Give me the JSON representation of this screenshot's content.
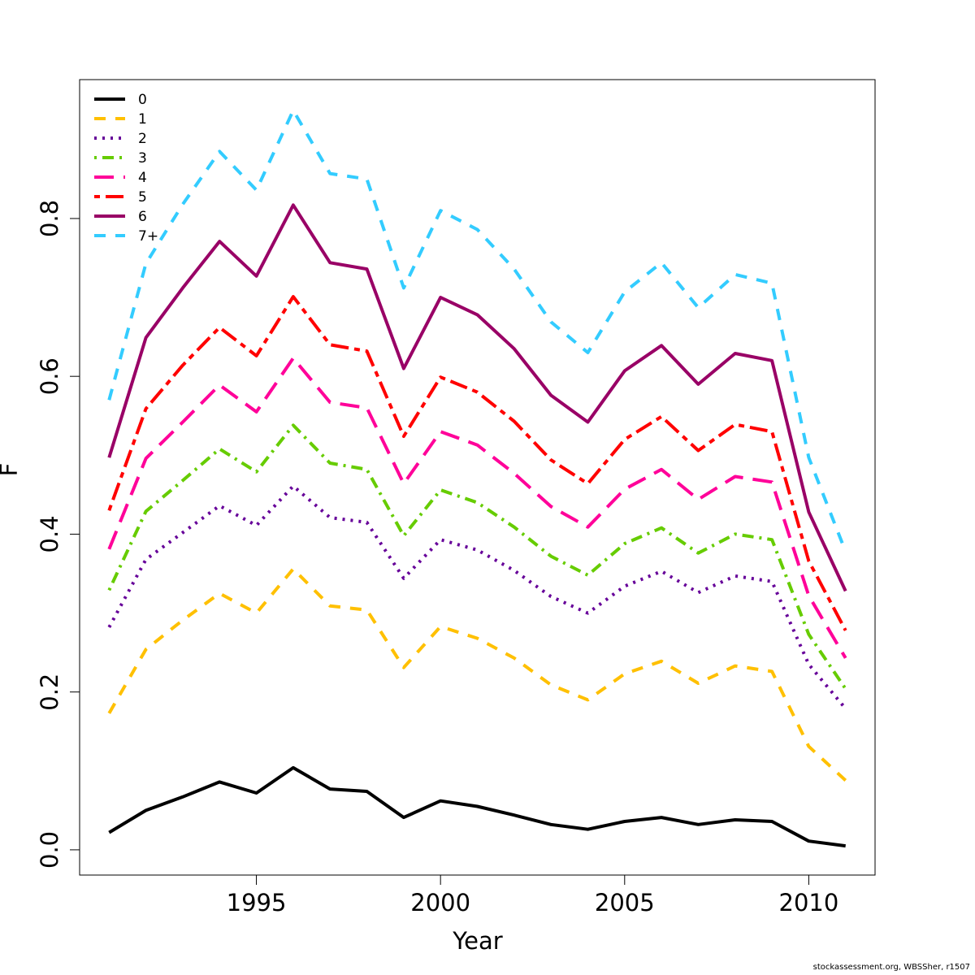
{
  "chart_data": {
    "type": "line",
    "xlabel": "Year",
    "ylabel": "F",
    "xlim": [
      1990.2,
      2011.8
    ],
    "ylim": [
      -0.032,
      0.976
    ],
    "x_ticks": [
      1995,
      2000,
      2005,
      2010
    ],
    "y_ticks": [
      0.0,
      0.2,
      0.4,
      0.6,
      0.8
    ],
    "y_tick_labels": [
      "0.0",
      "0.2",
      "0.4",
      "0.6",
      "0.8"
    ],
    "legend_position": "top-left",
    "grid": false,
    "x": [
      1991,
      1992,
      1993,
      1994,
      1995,
      1996,
      1997,
      1998,
      1999,
      2000,
      2001,
      2002,
      2003,
      2004,
      2005,
      2006,
      2007,
      2008,
      2009,
      2010,
      2011
    ],
    "series": [
      {
        "name": "0",
        "color": "#000000",
        "dash": "solid",
        "values": [
          0.022,
          0.05,
          0.067,
          0.086,
          0.072,
          0.104,
          0.077,
          0.074,
          0.041,
          0.062,
          0.055,
          0.044,
          0.032,
          0.026,
          0.036,
          0.041,
          0.032,
          0.038,
          0.036,
          0.011,
          0.005
        ]
      },
      {
        "name": "1",
        "color": "#FFC000",
        "dash": "dashed",
        "values": [
          0.173,
          0.254,
          0.291,
          0.325,
          0.3,
          0.356,
          0.309,
          0.304,
          0.231,
          0.283,
          0.268,
          0.243,
          0.209,
          0.19,
          0.223,
          0.239,
          0.211,
          0.233,
          0.226,
          0.131,
          0.088
        ]
      },
      {
        "name": "2",
        "color": "#660099",
        "dash": "dotted",
        "values": [
          0.282,
          0.368,
          0.402,
          0.436,
          0.411,
          0.461,
          0.421,
          0.415,
          0.344,
          0.393,
          0.38,
          0.354,
          0.321,
          0.3,
          0.334,
          0.353,
          0.326,
          0.347,
          0.34,
          0.235,
          0.179
        ]
      },
      {
        "name": "3",
        "color": "#66CC00",
        "dash": "dotdash",
        "values": [
          0.329,
          0.429,
          0.468,
          0.508,
          0.479,
          0.538,
          0.49,
          0.482,
          0.398,
          0.456,
          0.44,
          0.409,
          0.372,
          0.348,
          0.388,
          0.408,
          0.376,
          0.4,
          0.393,
          0.273,
          0.204
        ]
      },
      {
        "name": "4",
        "color": "#FF0099",
        "dash": "longdash",
        "values": [
          0.381,
          0.496,
          0.542,
          0.589,
          0.555,
          0.623,
          0.567,
          0.56,
          0.464,
          0.53,
          0.513,
          0.477,
          0.435,
          0.409,
          0.457,
          0.482,
          0.444,
          0.473,
          0.466,
          0.322,
          0.243
        ]
      },
      {
        "name": "5",
        "color": "#FF0000",
        "dash": "twodash",
        "values": [
          0.43,
          0.559,
          0.614,
          0.662,
          0.626,
          0.701,
          0.64,
          0.632,
          0.524,
          0.599,
          0.58,
          0.543,
          0.494,
          0.464,
          0.52,
          0.549,
          0.506,
          0.539,
          0.53,
          0.366,
          0.278
        ]
      },
      {
        "name": "6",
        "color": "#990066",
        "dash": "solid",
        "values": [
          0.497,
          0.649,
          0.712,
          0.771,
          0.727,
          0.817,
          0.744,
          0.736,
          0.61,
          0.7,
          0.678,
          0.635,
          0.576,
          0.542,
          0.607,
          0.639,
          0.59,
          0.629,
          0.62,
          0.428,
          0.328
        ]
      },
      {
        "name": "7+",
        "color": "#33CCFF",
        "dash": "dashed",
        "values": [
          0.57,
          0.743,
          0.818,
          0.885,
          0.836,
          0.937,
          0.857,
          0.85,
          0.712,
          0.81,
          0.786,
          0.736,
          0.669,
          0.63,
          0.707,
          0.744,
          0.687,
          0.729,
          0.718,
          0.497,
          0.378
        ]
      }
    ]
  },
  "credit": "stockassessment.org, WBSSher, r1507"
}
